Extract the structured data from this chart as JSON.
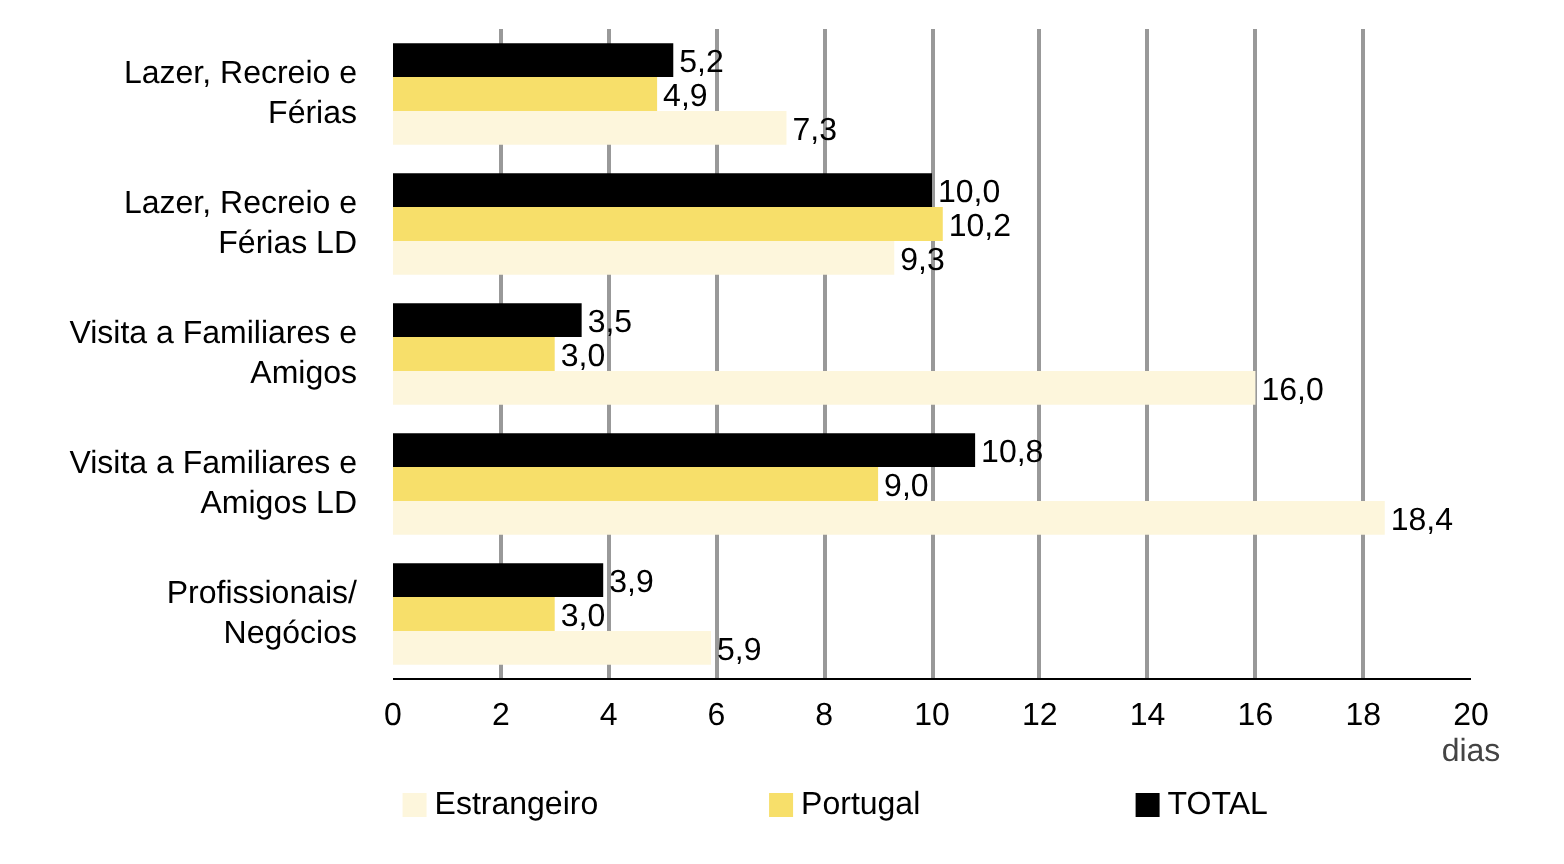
{
  "chart_data": {
    "type": "bar",
    "orientation": "horizontal",
    "xlabel": "dias",
    "categories": [
      "Lazer, Recreio e Férias",
      "Lazer, Recreio e Férias LD",
      "Visita a Familiares e Amigos",
      "Visita a Familiares e Amigos LD",
      "Profissionais/ Negócios"
    ],
    "series": [
      {
        "name": "Estrangeiro",
        "color": "#fdf6dc",
        "values": [
          7.3,
          9.3,
          16.0,
          18.4,
          5.9
        ],
        "value_labels": [
          "7,3",
          "9,3",
          "16,0",
          "18,4",
          "5,9"
        ]
      },
      {
        "name": "Portugal",
        "color": "#f7df6a",
        "values": [
          4.9,
          10.2,
          3.0,
          9.0,
          3.0
        ],
        "value_labels": [
          "4,9",
          "10,2",
          "3,0",
          "9,0",
          "3,0"
        ]
      },
      {
        "name": "TOTAL",
        "color": "#000000",
        "values": [
          5.2,
          10.0,
          3.5,
          10.8,
          3.9
        ],
        "value_labels": [
          "5,2",
          "10,0",
          "3,5",
          "10,8",
          "3,9"
        ]
      }
    ],
    "xlim": [
      0,
      20
    ],
    "xticks": [
      0,
      2,
      4,
      6,
      8,
      10,
      12,
      14,
      16,
      18,
      20
    ],
    "grid": "x",
    "legend": "bottom"
  }
}
